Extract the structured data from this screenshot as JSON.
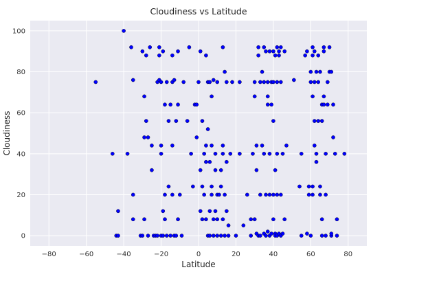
{
  "chart_data": {
    "type": "scatter",
    "title": "Cloudiness vs Latitude",
    "xlabel": "Latitude",
    "ylabel": "Cloudiness",
    "xlim": [
      -90,
      90
    ],
    "ylim": [
      -5,
      105
    ],
    "xticks": [
      -80,
      -60,
      -40,
      -20,
      0,
      20,
      40,
      60,
      80
    ],
    "yticks": [
      0,
      20,
      40,
      60,
      80,
      100
    ],
    "grid": true,
    "background": "#eaeaf2",
    "grid_color": "#ffffff",
    "marker_color": "#0000ff",
    "marker_edge_color": "#000000",
    "series": [
      {
        "points": [
          [
            -55,
            75
          ],
          [
            -46,
            40
          ],
          [
            -43,
            12
          ],
          [
            -44,
            0
          ],
          [
            -43,
            0
          ],
          [
            -40,
            100
          ],
          [
            -38,
            40
          ],
          [
            -36,
            92
          ],
          [
            -35,
            76
          ],
          [
            -35,
            20
          ],
          [
            -35,
            8
          ],
          [
            -31,
            0
          ],
          [
            -30,
            0
          ],
          [
            -30,
            90
          ],
          [
            -29,
            48
          ],
          [
            -29,
            8
          ],
          [
            -29,
            68
          ],
          [
            -28,
            56
          ],
          [
            -28,
            88
          ],
          [
            -27,
            48
          ],
          [
            -27,
            0
          ],
          [
            -26,
            92
          ],
          [
            -25,
            32
          ],
          [
            -25,
            44
          ],
          [
            -24,
            0
          ],
          [
            -23,
            0
          ],
          [
            -22,
            75
          ],
          [
            -22,
            0
          ],
          [
            -21,
            92
          ],
          [
            -21,
            88
          ],
          [
            -21,
            76
          ],
          [
            -20,
            44
          ],
          [
            -20,
            0
          ],
          [
            -20,
            75
          ],
          [
            -20,
            40
          ],
          [
            -19,
            90
          ],
          [
            -19,
            12
          ],
          [
            -19,
            0
          ],
          [
            -18,
            64
          ],
          [
            -18,
            8
          ],
          [
            -18,
            20
          ],
          [
            -17,
            75
          ],
          [
            -17,
            0
          ],
          [
            -16,
            24
          ],
          [
            -16,
            56
          ],
          [
            -15,
            64
          ],
          [
            -15,
            0
          ],
          [
            -14,
            88
          ],
          [
            -14,
            75
          ],
          [
            -14,
            44
          ],
          [
            -14,
            20
          ],
          [
            -13,
            76
          ],
          [
            -13,
            0
          ],
          [
            -12,
            0
          ],
          [
            -12,
            56
          ],
          [
            -11,
            64
          ],
          [
            -11,
            90
          ],
          [
            -11,
            8
          ],
          [
            -10,
            20
          ],
          [
            -9,
            0
          ],
          [
            -8,
            75
          ],
          [
            -6,
            56
          ],
          [
            -5,
            92
          ],
          [
            -4,
            40
          ],
          [
            -3,
            24
          ],
          [
            -2,
            64
          ],
          [
            -1,
            64
          ],
          [
            -1,
            48
          ],
          [
            0,
            75
          ],
          [
            1,
            90
          ],
          [
            1,
            12
          ],
          [
            1,
            32
          ],
          [
            2,
            8
          ],
          [
            2,
            56
          ],
          [
            2,
            24
          ],
          [
            3,
            40
          ],
          [
            3,
            20
          ],
          [
            4,
            44
          ],
          [
            4,
            36
          ],
          [
            4,
            88
          ],
          [
            4,
            8
          ],
          [
            5,
            75
          ],
          [
            5,
            0
          ],
          [
            5,
            52
          ],
          [
            6,
            75
          ],
          [
            6,
            12
          ],
          [
            6,
            0
          ],
          [
            6,
            36
          ],
          [
            7,
            24
          ],
          [
            7,
            20
          ],
          [
            7,
            44
          ],
          [
            7,
            68
          ],
          [
            8,
            76
          ],
          [
            8,
            8
          ],
          [
            8,
            0
          ],
          [
            9,
            40
          ],
          [
            9,
            32
          ],
          [
            9,
            12
          ],
          [
            10,
            75
          ],
          [
            10,
            0
          ],
          [
            10,
            20
          ],
          [
            10,
            8
          ],
          [
            11,
            20
          ],
          [
            12,
            24
          ],
          [
            12,
            0
          ],
          [
            12,
            32
          ],
          [
            13,
            92
          ],
          [
            13,
            44
          ],
          [
            13,
            8
          ],
          [
            13,
            40
          ],
          [
            14,
            80
          ],
          [
            14,
            0
          ],
          [
            14,
            20
          ],
          [
            15,
            75
          ],
          [
            15,
            36
          ],
          [
            15,
            12
          ],
          [
            16,
            0
          ],
          [
            16,
            5
          ],
          [
            17,
            40
          ],
          [
            18,
            75
          ],
          [
            20,
            0
          ],
          [
            22,
            40
          ],
          [
            22,
            75
          ],
          [
            24,
            5
          ],
          [
            26,
            20
          ],
          [
            28,
            0
          ],
          [
            28,
            8
          ],
          [
            29,
            40
          ],
          [
            30,
            75
          ],
          [
            30,
            8
          ],
          [
            30,
            68
          ],
          [
            31,
            44
          ],
          [
            31,
            32
          ],
          [
            31,
            1
          ],
          [
            32,
            0
          ],
          [
            32,
            92
          ],
          [
            32,
            88
          ],
          [
            33,
            75
          ],
          [
            33,
            20
          ],
          [
            33,
            0
          ],
          [
            34,
            44
          ],
          [
            34,
            80
          ],
          [
            35,
            92
          ],
          [
            35,
            75
          ],
          [
            35,
            1
          ],
          [
            35,
            40
          ],
          [
            36,
            0
          ],
          [
            36,
            20
          ],
          [
            36,
            90
          ],
          [
            37,
            75
          ],
          [
            37,
            68
          ],
          [
            37,
            64
          ],
          [
            37,
            2
          ],
          [
            38,
            20
          ],
          [
            38,
            40
          ],
          [
            38,
            0
          ],
          [
            38,
            90
          ],
          [
            39,
            75
          ],
          [
            39,
            1
          ],
          [
            39,
            64
          ],
          [
            40,
            20
          ],
          [
            40,
            90
          ],
          [
            40,
            75
          ],
          [
            40,
            56
          ],
          [
            40,
            8
          ],
          [
            41,
            1
          ],
          [
            41,
            0
          ],
          [
            41,
            32
          ],
          [
            41,
            88
          ],
          [
            42,
            75
          ],
          [
            42,
            92
          ],
          [
            42,
            20
          ],
          [
            42,
            40
          ],
          [
            42,
            0
          ],
          [
            43,
            90
          ],
          [
            43,
            1
          ],
          [
            43,
            88
          ],
          [
            44,
            75
          ],
          [
            44,
            20
          ],
          [
            44,
            92
          ],
          [
            44,
            0
          ],
          [
            45,
            1
          ],
          [
            45,
            40
          ],
          [
            46,
            8
          ],
          [
            46,
            90
          ],
          [
            47,
            44
          ],
          [
            51,
            76
          ],
          [
            54,
            24
          ],
          [
            55,
            0
          ],
          [
            55,
            40
          ],
          [
            57,
            88
          ],
          [
            58,
            90
          ],
          [
            58,
            1
          ],
          [
            59,
            20
          ],
          [
            59,
            24
          ],
          [
            60,
            80
          ],
          [
            60,
            75
          ],
          [
            60,
            0
          ],
          [
            61,
            88
          ],
          [
            61,
            92
          ],
          [
            61,
            68
          ],
          [
            61,
            20
          ],
          [
            61,
            24
          ],
          [
            62,
            56
          ],
          [
            62,
            75
          ],
          [
            62,
            90
          ],
          [
            62,
            44
          ],
          [
            63,
            36
          ],
          [
            63,
            40
          ],
          [
            63,
            80
          ],
          [
            64,
            88
          ],
          [
            64,
            56
          ],
          [
            64,
            75
          ],
          [
            65,
            80
          ],
          [
            65,
            20
          ],
          [
            65,
            24
          ],
          [
            66,
            56
          ],
          [
            66,
            64
          ],
          [
            66,
            8
          ],
          [
            66,
            0
          ],
          [
            67,
            92
          ],
          [
            67,
            90
          ],
          [
            67,
            68
          ],
          [
            67,
            64
          ],
          [
            68,
            40
          ],
          [
            68,
            20
          ],
          [
            68,
            0
          ],
          [
            69,
            64
          ],
          [
            69,
            75
          ],
          [
            70,
            80
          ],
          [
            70,
            92
          ],
          [
            71,
            0
          ],
          [
            71,
            1
          ],
          [
            71,
            80
          ],
          [
            72,
            48
          ],
          [
            72,
            64
          ],
          [
            73,
            40
          ],
          [
            74,
            8
          ],
          [
            74,
            0
          ],
          [
            78,
            40
          ]
        ]
      }
    ]
  }
}
